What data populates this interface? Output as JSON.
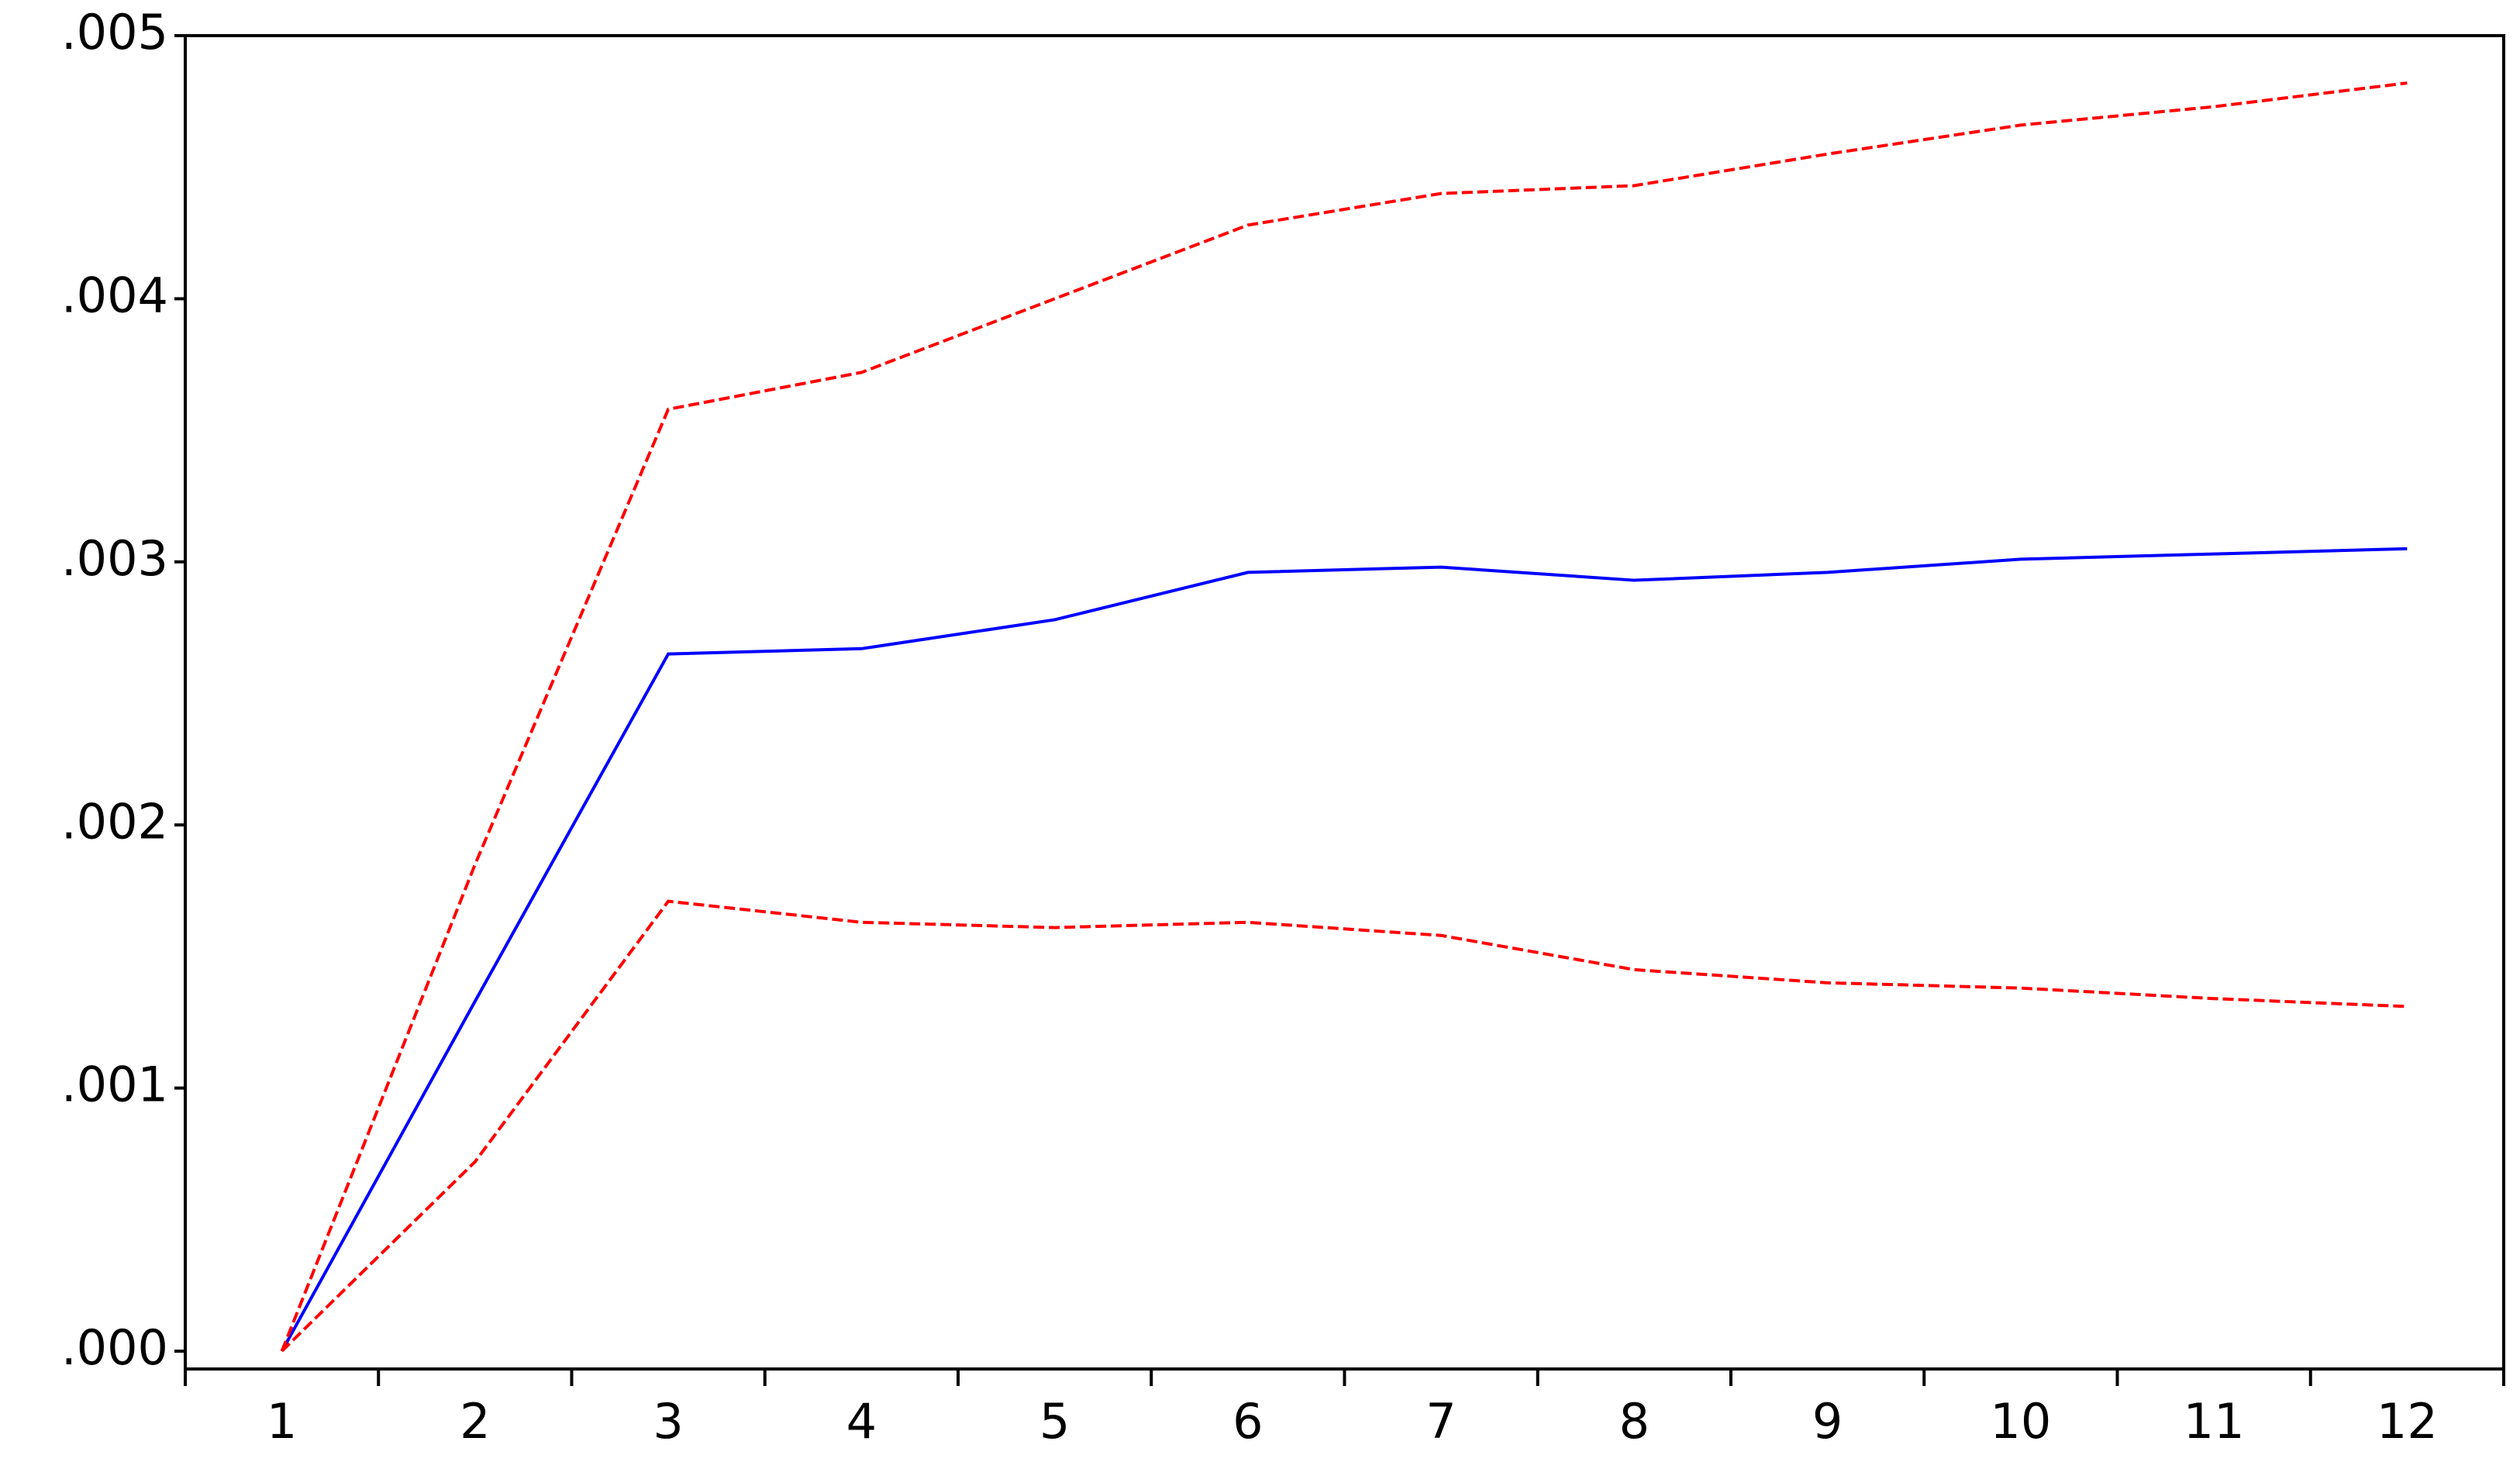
{
  "chart_data": {
    "type": "line",
    "categories": [
      "1",
      "2",
      "3",
      "4",
      "5",
      "6",
      "7",
      "8",
      "9",
      "10",
      "11",
      "12"
    ],
    "series": [
      {
        "color": "#0000ff",
        "dash": false,
        "values": [
          0,
          0.00133,
          0.00265,
          0.00267,
          0.00278,
          0.00296,
          0.00298,
          0.00293,
          0.00296,
          0.00301,
          0.00303,
          0.00305
        ]
      },
      {
        "color": "#ff0000",
        "dash": true,
        "values": [
          0,
          0.00185,
          0.00358,
          0.00372,
          0.004,
          0.00428,
          0.0044,
          0.00443,
          0.00455,
          0.00466,
          0.00473,
          0.00482
        ]
      },
      {
        "color": "#ff0000",
        "dash": true,
        "values": [
          0,
          0.00072,
          0.00171,
          0.00163,
          0.00161,
          0.00163,
          0.00158,
          0.00145,
          0.0014,
          0.00138,
          0.00134,
          0.00131
        ]
      }
    ],
    "ylim": [
      0,
      0.005
    ],
    "yticks": [
      {
        "value": 0,
        "label": ".000"
      },
      {
        "value": 0.001,
        "label": ".001"
      },
      {
        "value": 0.002,
        "label": ".002"
      },
      {
        "value": 0.003,
        "label": ".003"
      },
      {
        "value": 0.004,
        "label": ".004"
      },
      {
        "value": 0.005,
        "label": ".005"
      }
    ],
    "grid": false
  }
}
